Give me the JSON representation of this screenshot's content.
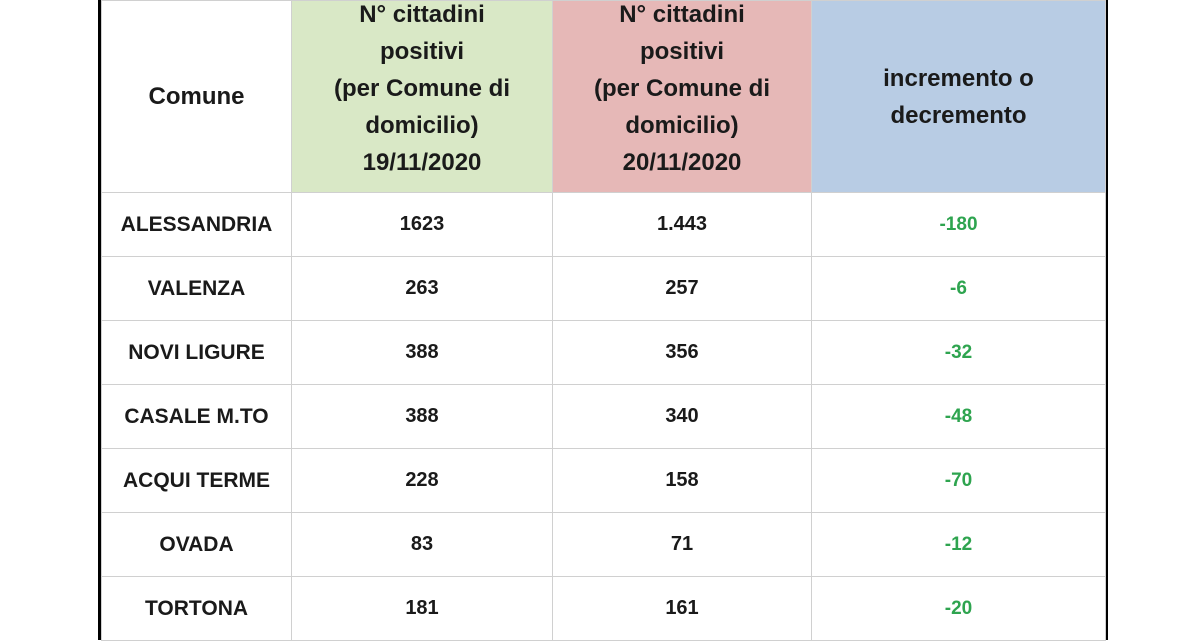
{
  "headers": {
    "comune": "Comune",
    "positivi_1": "N° cittadini\npositivi\n(per Comune di\ndomicilio)\n19/11/2020",
    "positivi_2": "N° cittadini\npositivi\n(per Comune di\ndomicilio)\n20/11/2020",
    "delta": "incremento o\ndecremento"
  },
  "colors": {
    "header_19_11": "#d9e8c6",
    "header_20_11": "#e6b8b7",
    "header_delta": "#b8cce4",
    "decrement_text": "#2ea44f"
  },
  "rows": [
    {
      "comune": "ALESSANDRIA",
      "p1": "1623",
      "p2": "1.443",
      "delta": "-180"
    },
    {
      "comune": "VALENZA",
      "p1": "263",
      "p2": "257",
      "delta": "-6"
    },
    {
      "comune": "NOVI LIGURE",
      "p1": "388",
      "p2": "356",
      "delta": "-32"
    },
    {
      "comune": "CASALE M.TO",
      "p1": "388",
      "p2": "340",
      "delta": "-48"
    },
    {
      "comune": "ACQUI TERME",
      "p1": "228",
      "p2": "158",
      "delta": "-70"
    },
    {
      "comune": "OVADA",
      "p1": "83",
      "p2": "71",
      "delta": "-12"
    },
    {
      "comune": "TORTONA",
      "p1": "181",
      "p2": "161",
      "delta": "-20"
    }
  ]
}
